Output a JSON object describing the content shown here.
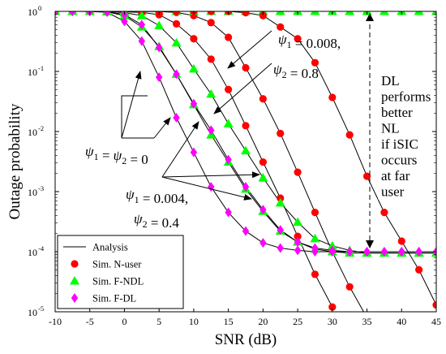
{
  "chart_data": {
    "type": "line",
    "xlabel": "SNR (dB)",
    "ylabel": "Outage probability",
    "xlim": [
      -10,
      45
    ],
    "ylim": [
      1e-05,
      1
    ],
    "yscale": "log",
    "xticks": [
      "-10",
      "-5",
      "0",
      "5",
      "10",
      "15",
      "20",
      "25",
      "30",
      "35",
      "40",
      "45"
    ],
    "yticks": [
      {
        "value": 1e-05,
        "base": "10",
        "exp": "-5"
      },
      {
        "value": 0.0001,
        "base": "10",
        "exp": "-4"
      },
      {
        "value": 0.001,
        "base": "10",
        "exp": "-3"
      },
      {
        "value": 0.01,
        "base": "10",
        "exp": "-2"
      },
      {
        "value": 0.1,
        "base": "10",
        "exp": "-1"
      },
      {
        "value": 1,
        "base": "10",
        "exp": "0"
      }
    ],
    "grid": false,
    "legend_position": "bottom-left",
    "legend": [
      {
        "label": "Analysis",
        "marker": "line"
      },
      {
        "label": "Sim. N-user",
        "marker": "circle",
        "color": "#ff0000"
      },
      {
        "label": "Sim. F-NDL",
        "marker": "triangle",
        "color": "#00ff00"
      },
      {
        "label": "Sim. F-DL",
        "marker": "diamond",
        "color": "#ff00ff"
      }
    ],
    "series": [
      {
        "type": "N-user",
        "marker": "circle",
        "color": "#ff0000",
        "x": [
          -10,
          -7.5,
          -5,
          -2.5,
          0,
          2.5,
          5,
          7.5,
          10,
          12.5,
          15,
          17.5,
          20,
          22.5,
          25,
          27.5,
          30,
          32.5,
          35,
          37.5,
          40,
          42.5,
          45
        ],
        "y": [
          1,
          1,
          1,
          1,
          0.999,
          0.99,
          0.99,
          0.96,
          0.85,
          0.65,
          0.37,
          0.115,
          0.035,
          0.0093,
          0.0021,
          0.00045,
          0.0001,
          2.6e-05,
          8e-06,
          null,
          null,
          null,
          null
        ]
      },
      {
        "type": "F-NDL",
        "marker": "triangle",
        "color": "#00ff00",
        "x": [
          -10,
          -7.5,
          -5,
          -2.5,
          0,
          2.5,
          5,
          7.5,
          10,
          12.5,
          15,
          17.5,
          20,
          22.5,
          25,
          27.5,
          30,
          32.5,
          35,
          37.5,
          40,
          42.5,
          45
        ],
        "y": [
          1,
          1,
          1,
          1,
          1,
          1,
          1,
          1,
          1,
          1,
          1,
          1,
          1,
          1,
          1,
          1,
          1,
          1,
          1,
          1,
          1,
          1,
          1
        ]
      },
      {
        "type": "N-user",
        "marker": "circle",
        "color": "#ff0000",
        "x": [
          -10,
          -7.5,
          -5,
          -2.5,
          0,
          2.5,
          5,
          7.5,
          10,
          12.5,
          15,
          17.5,
          20,
          22.5,
          25,
          27.5,
          30,
          32.5,
          35,
          37.5,
          40,
          42.5,
          45
        ],
        "y": [
          1,
          1,
          1,
          1,
          1,
          1,
          1,
          1,
          1,
          1,
          1,
          0.95,
          0.85,
          0.55,
          0.35,
          0.14,
          0.037,
          0.0088,
          0.0018,
          0.00045,
          0.00015,
          5e-05,
          1.3e-05
        ]
      },
      {
        "type": "N-user",
        "marker": "circle",
        "color": "#ff0000",
        "x": [
          -10,
          -7.5,
          -5,
          -2.5,
          0,
          2.5,
          5,
          7.5,
          10,
          12.5,
          15,
          17.5,
          20,
          22.5,
          25,
          27.5,
          30,
          32.5,
          35,
          37.5,
          40,
          42.5,
          45
        ],
        "y": [
          1,
          1,
          1,
          1,
          0.98,
          0.96,
          0.88,
          0.62,
          0.35,
          0.16,
          0.05,
          0.0125,
          0.0031,
          0.00078,
          0.00018,
          4.2e-05,
          1.2e-05,
          null,
          null,
          null,
          null,
          null,
          null
        ]
      },
      {
        "type": "F-NDL",
        "marker": "triangle",
        "color": "#00ff00",
        "x": [
          -10,
          -7.5,
          -5,
          -2.5,
          0,
          2.5,
          5,
          7.5,
          10,
          12.5,
          15,
          17.5,
          20,
          22.5,
          25,
          27.5,
          30,
          32.5,
          35,
          37.5,
          40,
          42.5,
          45
        ],
        "y": [
          1,
          1,
          1,
          1,
          0.95,
          0.85,
          0.58,
          0.3,
          0.11,
          0.042,
          0.0135,
          0.0048,
          0.0017,
          0.00065,
          0.00031,
          0.000165,
          0.000125,
          0.000105,
          9.5e-05,
          9.5e-05,
          9.5e-05,
          9.5e-05,
          9.5e-05
        ]
      },
      {
        "type": "F-NDL",
        "marker": "triangle",
        "color": "#00ff00",
        "x": [
          -10,
          -7.5,
          -5,
          -2.5,
          0,
          2.5,
          5,
          7.5,
          10,
          12.5,
          15,
          17.5,
          20,
          22.5,
          25,
          27.5,
          30,
          32.5,
          35,
          37.5,
          40,
          42.5,
          45
        ],
        "y": [
          1,
          1,
          1,
          0.98,
          0.85,
          0.55,
          0.26,
          0.09,
          0.028,
          0.0088,
          0.0031,
          0.0011,
          0.00047,
          0.00022,
          0.000145,
          0.00011,
          0.0001,
          9.5e-05,
          9.5e-05,
          9.5e-05,
          9.5e-05,
          9.5e-05,
          9.5e-05
        ]
      },
      {
        "type": "F-DL",
        "marker": "diamond",
        "color": "#ff00ff",
        "x": [
          -10,
          -7.5,
          -5,
          -2.5,
          0,
          2.5,
          5,
          7.5,
          10,
          12.5,
          15,
          17.5,
          20,
          22.5,
          25,
          27.5,
          30,
          32.5,
          35,
          37.5,
          40,
          42.5,
          45
        ],
        "y": [
          1,
          1,
          1,
          0.99,
          0.88,
          0.6,
          0.25,
          0.09,
          0.029,
          0.0105,
          0.0034,
          0.0012,
          0.0005,
          0.00023,
          0.000145,
          0.000115,
          0.000105,
          0.0001,
          0.0001,
          0.0001,
          0.0001,
          0.0001,
          0.0001
        ]
      },
      {
        "type": "F-DL",
        "marker": "diamond",
        "color": "#ff00ff",
        "x": [
          -10,
          -7.5,
          -5,
          -2.5,
          0,
          2.5,
          5,
          7.5,
          10,
          12.5,
          15,
          17.5,
          20,
          22.5,
          25,
          27.5,
          30,
          32.5,
          35,
          37.5,
          40,
          42.5,
          45
        ],
        "y": [
          1,
          1,
          0.99,
          0.97,
          0.68,
          0.32,
          0.08,
          0.017,
          0.0045,
          0.0012,
          0.00045,
          0.00022,
          0.00014,
          0.000115,
          0.000105,
          0.0001,
          0.0001,
          0.0001,
          0.0001,
          0.0001,
          0.0001,
          0.0001,
          0.0001
        ]
      }
    ],
    "annotations": [
      {
        "name": "psi-small",
        "lines": [
          "ψ1 = 0.008,",
          "ψ2 = 0.8"
        ]
      },
      {
        "name": "psi-zero",
        "lines": [
          "ψ1 = ψ2 = 0"
        ]
      },
      {
        "name": "psi-mid",
        "lines": [
          "ψ1 = 0.004,",
          "ψ2 = 0.4"
        ]
      },
      {
        "name": "dl-note",
        "lines": [
          "DL",
          "performs",
          "better",
          "NL",
          "if iSIC",
          "occurs",
          "at far",
          "user"
        ]
      }
    ]
  }
}
